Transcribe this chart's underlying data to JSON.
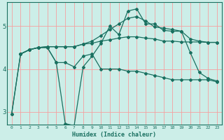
{
  "background_color": "#cceee8",
  "grid_color": "#f5a0a0",
  "line_color": "#1a7060",
  "xlabel": "Humidex (Indice chaleur)",
  "x_labels": [
    "0",
    "1",
    "2",
    "3",
    "4",
    "5",
    "6",
    "7",
    "8",
    "9",
    "10",
    "11",
    "12",
    "13",
    "14",
    "15",
    "16",
    "17",
    "18",
    "19",
    "20",
    "21",
    "22",
    "23"
  ],
  "ylim": [
    2.7,
    5.55
  ],
  "yticks": [
    3,
    4,
    5
  ],
  "line1_x": [
    0,
    1,
    2,
    3,
    4,
    5,
    6,
    7,
    8,
    9,
    10,
    11,
    12,
    13,
    14,
    15,
    16,
    17,
    18,
    19,
    20,
    21,
    22,
    23
  ],
  "line1_y": [
    2.95,
    4.35,
    4.45,
    4.5,
    4.5,
    4.15,
    4.15,
    4.05,
    4.3,
    4.35,
    4.0,
    4.0,
    4.0,
    3.95,
    3.95,
    3.9,
    3.85,
    3.8,
    3.75,
    3.75,
    3.75,
    3.75,
    3.75,
    3.7
  ],
  "line2_x": [
    0,
    1,
    2,
    3,
    4,
    5,
    6,
    7,
    8,
    9,
    10,
    11,
    12,
    13,
    14,
    15,
    16,
    17,
    18,
    19,
    20,
    21,
    22,
    23
  ],
  "line2_y": [
    2.95,
    4.35,
    4.45,
    4.5,
    4.5,
    4.15,
    2.73,
    2.68,
    4.05,
    4.3,
    4.6,
    5.0,
    4.8,
    5.35,
    5.4,
    5.05,
    5.05,
    4.9,
    4.88,
    4.88,
    4.38,
    3.92,
    3.78,
    3.72
  ],
  "line3_x": [
    1,
    2,
    3,
    4,
    5,
    6,
    7,
    8,
    9,
    10,
    11,
    12,
    13,
    14,
    15,
    16,
    17,
    18,
    19,
    20,
    21,
    22,
    23
  ],
  "line3_y": [
    4.35,
    4.45,
    4.5,
    4.52,
    4.52,
    4.52,
    4.52,
    4.58,
    4.6,
    4.65,
    4.68,
    4.72,
    4.75,
    4.75,
    4.72,
    4.7,
    4.65,
    4.65,
    4.63,
    4.63,
    4.63,
    4.62,
    4.62
  ],
  "line4_x": [
    1,
    2,
    3,
    4,
    5,
    6,
    7,
    8,
    9,
    10,
    11,
    12,
    13,
    14,
    15,
    16,
    17,
    18,
    19,
    20,
    21,
    22,
    23
  ],
  "line4_y": [
    4.35,
    4.45,
    4.5,
    4.52,
    4.52,
    4.52,
    4.52,
    4.58,
    4.65,
    4.78,
    4.92,
    5.05,
    5.18,
    5.22,
    5.12,
    4.98,
    4.95,
    4.92,
    4.88,
    4.7,
    4.65,
    4.62,
    4.62
  ]
}
